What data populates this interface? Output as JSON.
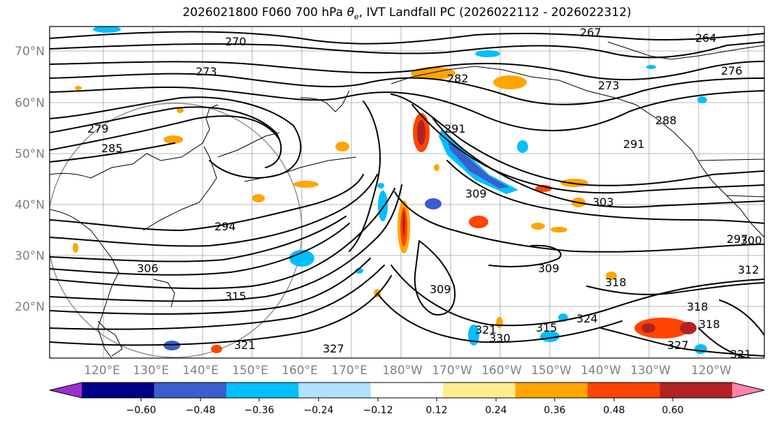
{
  "title_prefix": "2026021800 F060 700 hPa ",
  "title_symbol": "θ",
  "title_subscript": "e",
  "title_suffix": ", IVT Landfall PC (2026022112 - 2026022312)",
  "lat_labels": [
    "70°N",
    "60°N",
    "50°N",
    "40°N",
    "30°N",
    "20°N"
  ],
  "lon_labels": [
    "120°E",
    "130°E",
    "140°E",
    "150°E",
    "160°E",
    "170°E",
    "180°W",
    "170°W",
    "160°W",
    "150°W",
    "140°W",
    "130°W",
    "120°W"
  ],
  "contour_labels": [
    "270",
    "267",
    "264",
    "276",
    "273",
    "273",
    "279",
    "285",
    "282",
    "291",
    "291",
    "288",
    "294",
    "297",
    "306",
    "309",
    "303",
    "300",
    "309",
    "312",
    "309",
    "315",
    "318",
    "318",
    "318",
    "315",
    "324",
    "327",
    "321",
    "330",
    "321",
    "327",
    "321"
  ],
  "colorbar": {
    "colors": [
      "#9932cc",
      "#00008b",
      "#3a5fcd",
      "#00bfff",
      "#b0e2ff",
      "#ffffff",
      "#ffec8b",
      "#ffa500",
      "#ff4500",
      "#b22222",
      "#ff82ab"
    ],
    "ticks": [
      "−0.60",
      "−0.48",
      "−0.36",
      "−0.24",
      "−0.12",
      "0.12",
      "0.24",
      "0.36",
      "0.48",
      "0.60"
    ]
  },
  "colors": {
    "contour": "#000000",
    "grid": "#808080",
    "coast": "#000000"
  }
}
